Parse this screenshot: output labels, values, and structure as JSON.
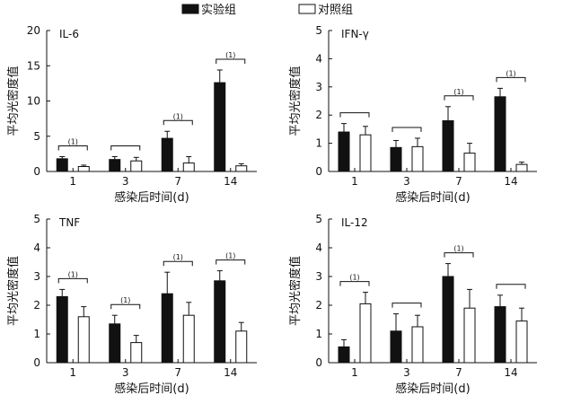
{
  "legend": {
    "items": [
      {
        "label": "实验组",
        "swatch": "#111111"
      },
      {
        "label": "对照组",
        "swatch": "#ffffff"
      }
    ]
  },
  "chart_data": [
    {
      "type": "bar",
      "title": "IL-6",
      "xlabel": "感染后时间(d)",
      "ylabel": "平均光密度值",
      "categories": [
        "1",
        "3",
        "7",
        "14"
      ],
      "ylim": [
        0,
        20
      ],
      "yticks": [
        0,
        5,
        10,
        15,
        20
      ],
      "series": [
        {
          "name": "实验组",
          "values": [
            1.8,
            1.7,
            4.7,
            12.6
          ],
          "errors": [
            0.3,
            0.4,
            1.0,
            1.8
          ]
        },
        {
          "name": "对照组",
          "values": [
            0.7,
            1.5,
            1.2,
            0.8
          ],
          "errors": [
            0.2,
            0.5,
            0.9,
            0.3
          ]
        }
      ],
      "brackets": [
        {
          "category": 0,
          "label": "(1)"
        },
        {
          "category": 1,
          "label": ""
        },
        {
          "category": 2,
          "label": "(1)"
        },
        {
          "category": 3,
          "label": "(1)"
        }
      ]
    },
    {
      "type": "bar",
      "title": "IFN-γ",
      "xlabel": "感染后时间(d)",
      "ylabel": "平均光密度值",
      "categories": [
        "1",
        "3",
        "7",
        "14"
      ],
      "ylim": [
        0,
        5
      ],
      "yticks": [
        0,
        1,
        2,
        3,
        4,
        5
      ],
      "series": [
        {
          "name": "实验组",
          "values": [
            1.4,
            0.85,
            1.8,
            2.65
          ],
          "errors": [
            0.3,
            0.25,
            0.5,
            0.3
          ]
        },
        {
          "name": "对照组",
          "values": [
            1.3,
            0.88,
            0.65,
            0.25
          ],
          "errors": [
            0.3,
            0.3,
            0.35,
            0.08
          ]
        }
      ],
      "brackets": [
        {
          "category": 0,
          "label": ""
        },
        {
          "category": 1,
          "label": ""
        },
        {
          "category": 2,
          "label": "(1)"
        },
        {
          "category": 3,
          "label": "(1)"
        }
      ]
    },
    {
      "type": "bar",
      "title": "TNF",
      "xlabel": "感染后时间(d)",
      "ylabel": "平均光密度值",
      "categories": [
        "1",
        "3",
        "7",
        "14"
      ],
      "ylim": [
        0,
        5
      ],
      "yticks": [
        0,
        1,
        2,
        3,
        4,
        5
      ],
      "series": [
        {
          "name": "实验组",
          "values": [
            2.3,
            1.35,
            2.4,
            2.85
          ],
          "errors": [
            0.25,
            0.3,
            0.75,
            0.35
          ]
        },
        {
          "name": "对照组",
          "values": [
            1.6,
            0.7,
            1.65,
            1.1
          ],
          "errors": [
            0.35,
            0.25,
            0.45,
            0.3
          ]
        }
      ],
      "brackets": [
        {
          "category": 0,
          "label": "(1)"
        },
        {
          "category": 1,
          "label": "(1)"
        },
        {
          "category": 2,
          "label": "(1)"
        },
        {
          "category": 3,
          "label": "(1)"
        }
      ]
    },
    {
      "type": "bar",
      "title": "IL-12",
      "xlabel": "感染后时间(d)",
      "ylabel": "平均光密度值",
      "categories": [
        "1",
        "3",
        "7",
        "14"
      ],
      "ylim": [
        0,
        5
      ],
      "yticks": [
        0,
        1,
        2,
        3,
        4,
        5
      ],
      "series": [
        {
          "name": "实验组",
          "values": [
            0.55,
            1.1,
            3.0,
            1.95
          ],
          "errors": [
            0.25,
            0.6,
            0.45,
            0.4
          ]
        },
        {
          "name": "对照组",
          "values": [
            2.05,
            1.25,
            1.9,
            1.45
          ],
          "errors": [
            0.4,
            0.4,
            0.65,
            0.45
          ]
        }
      ],
      "brackets": [
        {
          "category": 0,
          "label": "(1)"
        },
        {
          "category": 1,
          "label": ""
        },
        {
          "category": 2,
          "label": "(1)"
        },
        {
          "category": 3,
          "label": ""
        }
      ]
    }
  ]
}
